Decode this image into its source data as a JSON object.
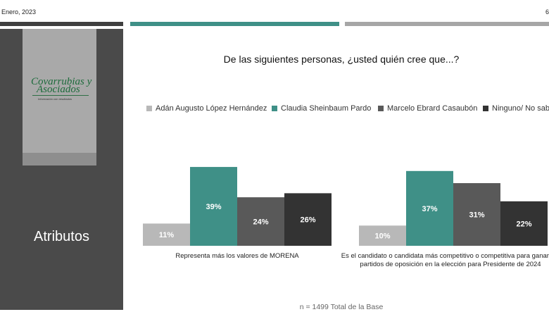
{
  "header": {
    "date": "Enero, 2023",
    "page_number": "6"
  },
  "logo": {
    "line1": "Covarrubias y",
    "line2": "Asociados",
    "tagline": "Información con resultados"
  },
  "sidebar": {
    "label": "Atributos"
  },
  "footnote": "n = 1499 Total de la Base",
  "chart_data": {
    "type": "bar",
    "title": "De las siguientes personas, ¿usted quién cree que...?",
    "legend_position": "top",
    "series": [
      {
        "name": "Adán Augusto López Hernández",
        "color": "#b8b8b8",
        "values": [
          11,
          10
        ]
      },
      {
        "name": "Claudia Sheinbaum Pardo",
        "color": "#3f9087",
        "values": [
          39,
          37
        ]
      },
      {
        "name": "Marcelo Ebrard Casaubón",
        "color": "#595959",
        "values": [
          24,
          31
        ]
      },
      {
        "name": "Ninguno/ No sabe",
        "color": "#333333",
        "values": [
          26,
          22
        ]
      }
    ],
    "categories": [
      [
        "Representa más los valores de MORENA"
      ],
      [
        "Es el candidato o candidata más competitivo o competitiva para ganarle a",
        "partidos de oposición en la elección para Presidente de 2024"
      ]
    ],
    "value_suffix": "%",
    "grid": false
  }
}
